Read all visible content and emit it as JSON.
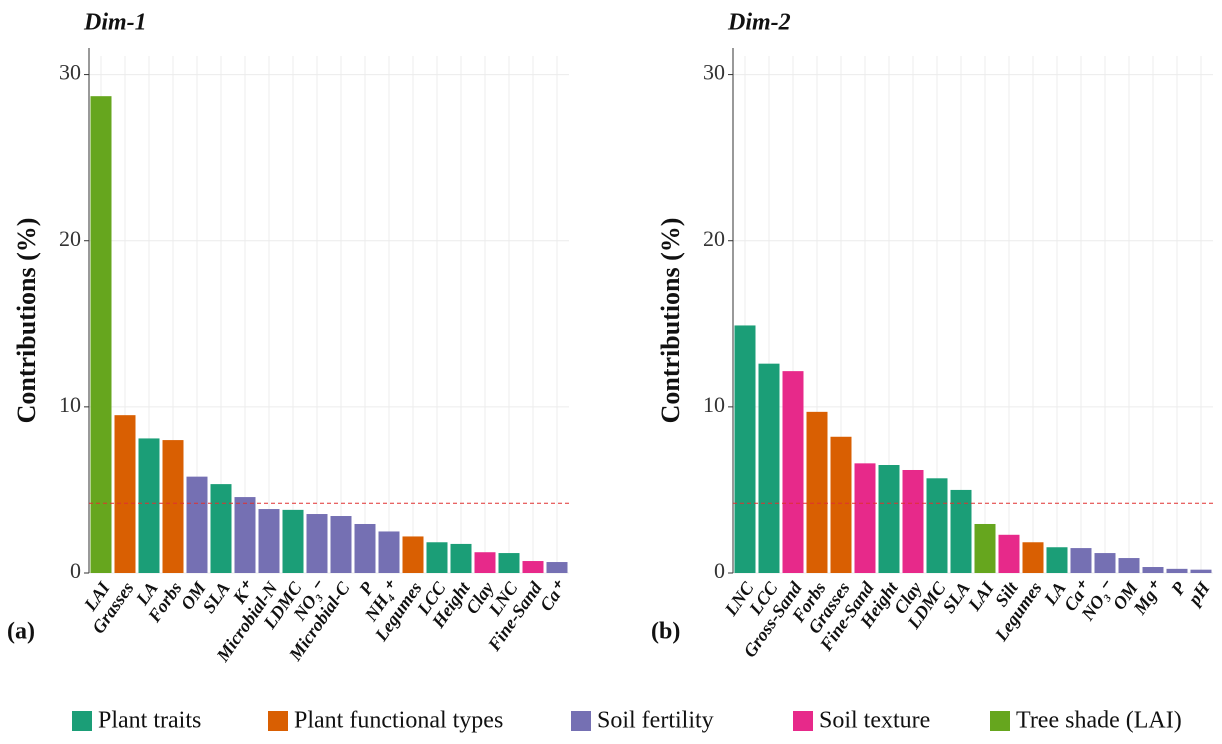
{
  "chart_data": [
    {
      "type": "bar",
      "title": "Dim-1",
      "panel_label": "(a)",
      "ylabel": "Contributions (%)",
      "categories": [
        "LAI",
        "Grasses",
        "LA",
        "Forbs",
        "OM",
        "SLA",
        "K⁺",
        "Microbial-N",
        "LDMC",
        "NO₃⁻",
        "Microbial-C",
        "P",
        "NH₄⁺",
        "Legumes",
        "LCC",
        "Height",
        "Clay",
        "LNC",
        "Fine-Sand",
        "Ca⁺"
      ],
      "values": [
        28.7,
        9.5,
        8.1,
        8.0,
        5.8,
        5.35,
        4.57,
        3.85,
        3.8,
        3.55,
        3.43,
        2.95,
        2.5,
        2.2,
        1.85,
        1.75,
        1.25,
        1.2,
        0.72,
        0.66
      ],
      "colors": [
        "#66a61e",
        "#d95f02",
        "#1b9e77",
        "#d95f02",
        "#7570b3",
        "#1b9e77",
        "#7570b3",
        "#7570b3",
        "#1b9e77",
        "#7570b3",
        "#7570b3",
        "#7570b3",
        "#7570b3",
        "#d95f02",
        "#1b9e77",
        "#1b9e77",
        "#e7298a",
        "#1b9e77",
        "#e7298a",
        "#7570b3"
      ],
      "ylim": [
        0,
        31.6
      ],
      "yticks": [
        0,
        10,
        20,
        30
      ],
      "hline": 4.2,
      "grid": true
    },
    {
      "type": "bar",
      "title": "Dim-2",
      "panel_label": "(b)",
      "ylabel": "Contributions (%)",
      "categories": [
        "LNC",
        "LCC",
        "Gross-Sand",
        "Forbs",
        "Grasses",
        "Fine-Sand",
        "Height",
        "Clay",
        "LDMC",
        "SLA",
        "LAI",
        "Silt",
        "Legumes",
        "LA",
        "Ca⁺",
        "NO₃⁻",
        "OM",
        "Mg⁺",
        "P",
        "pH"
      ],
      "values": [
        14.9,
        12.6,
        12.15,
        9.7,
        8.2,
        6.6,
        6.5,
        6.2,
        5.7,
        5.0,
        2.95,
        2.3,
        1.85,
        1.55,
        1.5,
        1.2,
        0.9,
        0.36,
        0.25,
        0.2
      ],
      "colors": [
        "#1b9e77",
        "#1b9e77",
        "#e7298a",
        "#d95f02",
        "#d95f02",
        "#e7298a",
        "#1b9e77",
        "#e7298a",
        "#1b9e77",
        "#1b9e77",
        "#66a61e",
        "#e7298a",
        "#d95f02",
        "#1b9e77",
        "#7570b3",
        "#7570b3",
        "#7570b3",
        "#7570b3",
        "#7570b3",
        "#7570b3"
      ],
      "ylim": [
        0,
        31.6
      ],
      "yticks": [
        0,
        10,
        20,
        30
      ],
      "hline": 4.2,
      "grid": true
    }
  ],
  "legend": [
    {
      "name": "Plant traits",
      "color": "#1b9e77"
    },
    {
      "name": "Plant functional types",
      "color": "#d95f02"
    },
    {
      "name": "Soil fertility",
      "color": "#7570b3"
    },
    {
      "name": "Soil texture",
      "color": "#e7298a"
    },
    {
      "name": "Tree shade (LAI)",
      "color": "#66a61e"
    }
  ]
}
